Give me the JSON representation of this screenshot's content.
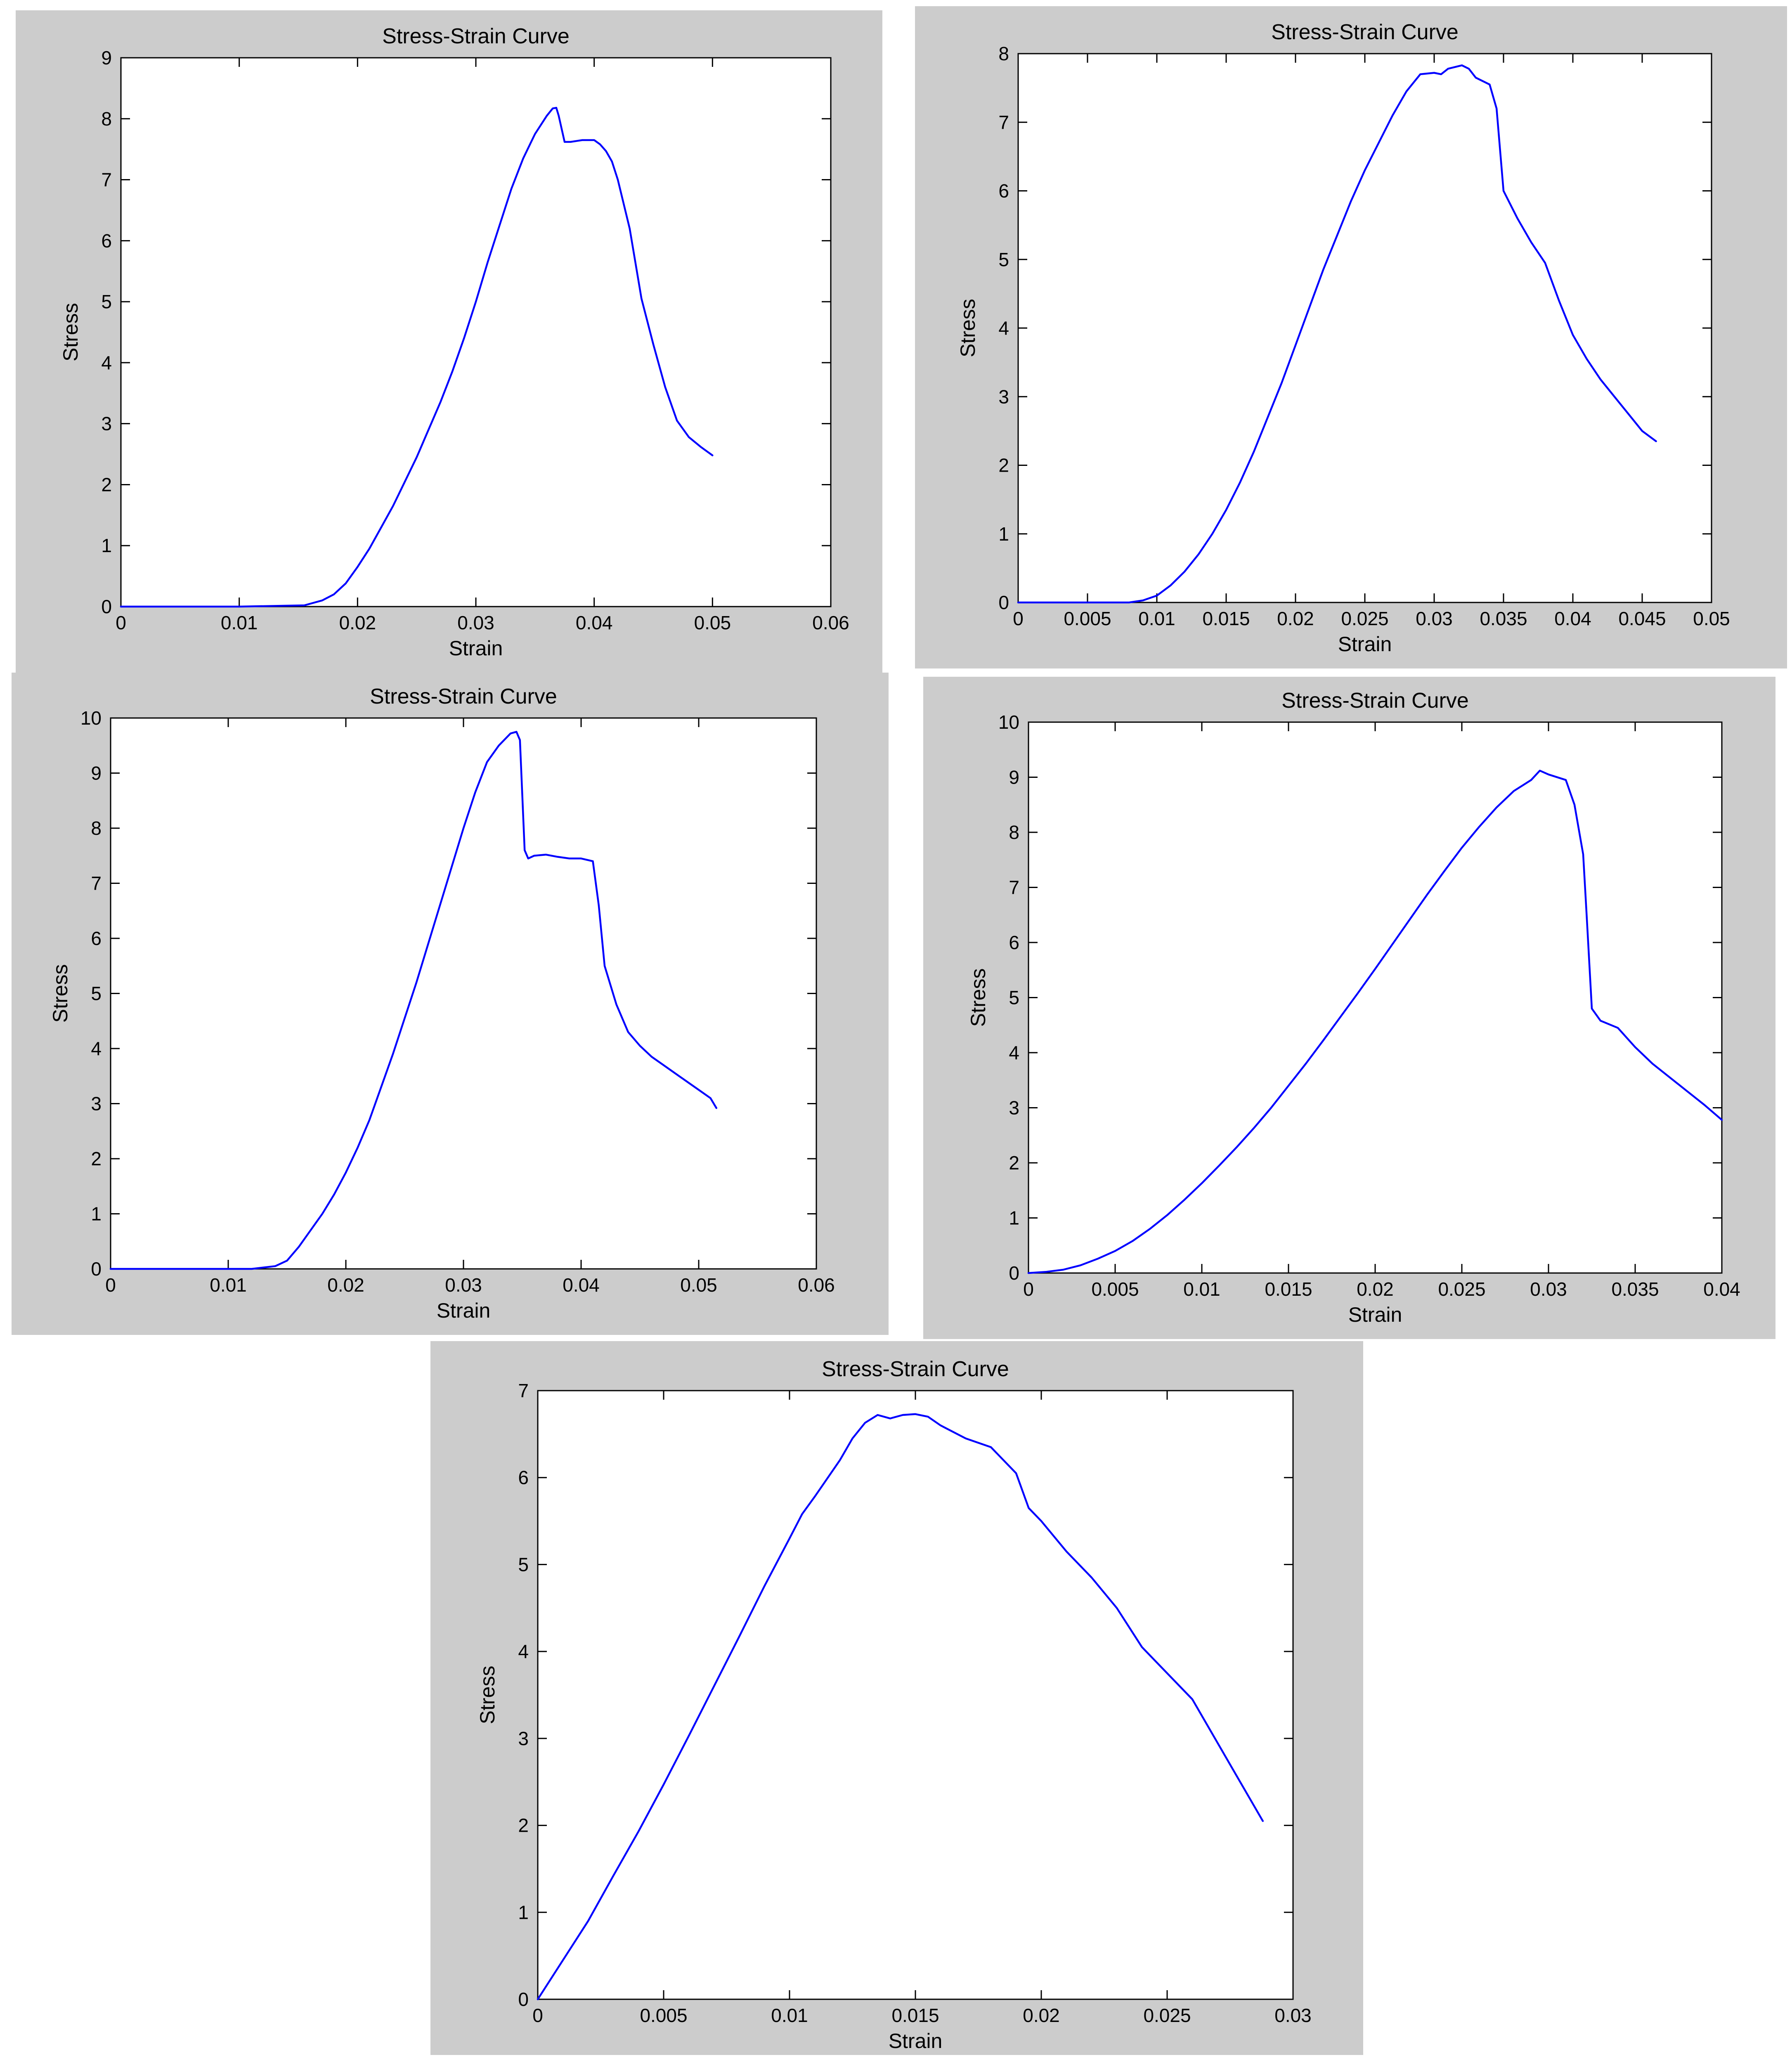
{
  "chart_data": [
    {
      "type": "line",
      "title": "Stress-Strain Curve",
      "xlabel": "Strain",
      "ylabel": "Stress",
      "xlim": [
        0,
        0.06
      ],
      "ylim": [
        0,
        9
      ],
      "xticks": [
        0,
        0.01,
        0.02,
        0.03,
        0.04,
        0.05,
        0.06
      ],
      "xtick_labels": [
        "0",
        "0.01",
        "0.02",
        "0.03",
        "0.04",
        "0.05",
        "0.06"
      ],
      "yticks": [
        0,
        1,
        2,
        3,
        4,
        5,
        6,
        7,
        8,
        9
      ],
      "ytick_labels": [
        "0",
        "1",
        "2",
        "3",
        "4",
        "5",
        "6",
        "7",
        "8",
        "9"
      ],
      "grid": false,
      "series": [
        {
          "color": "#0000ff",
          "x": [
            0,
            0.005,
            0.01,
            0.0155,
            0.017,
            0.018,
            0.019,
            0.02,
            0.021,
            0.022,
            0.023,
            0.024,
            0.025,
            0.026,
            0.027,
            0.028,
            0.029,
            0.03,
            0.031,
            0.032,
            0.033,
            0.034,
            0.035,
            0.036,
            0.0365,
            0.0368,
            0.037,
            0.0375,
            0.038,
            0.039,
            0.04,
            0.0405,
            0.041,
            0.0415,
            0.042,
            0.043,
            0.044,
            0.045,
            0.046,
            0.047,
            0.048,
            0.049,
            0.0495,
            0.05
          ],
          "y": [
            0,
            0,
            0,
            0.02,
            0.1,
            0.2,
            0.38,
            0.65,
            0.95,
            1.3,
            1.65,
            2.05,
            2.45,
            2.9,
            3.35,
            3.85,
            4.4,
            5.0,
            5.65,
            6.25,
            6.85,
            7.35,
            7.75,
            8.05,
            8.17,
            8.18,
            8.05,
            7.62,
            7.62,
            7.65,
            7.65,
            7.58,
            7.47,
            7.3,
            7.0,
            6.2,
            5.05,
            4.3,
            3.6,
            3.05,
            2.78,
            2.62,
            2.55,
            2.48
          ]
        }
      ]
    },
    {
      "type": "line",
      "title": "Stress-Strain Curve",
      "xlabel": "Strain",
      "ylabel": "Stress",
      "xlim": [
        0,
        0.05
      ],
      "ylim": [
        0,
        8
      ],
      "xticks": [
        0,
        0.005,
        0.01,
        0.015,
        0.02,
        0.025,
        0.03,
        0.035,
        0.04,
        0.045,
        0.05
      ],
      "xtick_labels": [
        "0",
        "0.005",
        "0.01",
        "0.015",
        "0.02",
        "0.025",
        "0.03",
        "0.035",
        "0.04",
        "0.045",
        "0.05"
      ],
      "yticks": [
        0,
        1,
        2,
        3,
        4,
        5,
        6,
        7,
        8
      ],
      "ytick_labels": [
        "0",
        "1",
        "2",
        "3",
        "4",
        "5",
        "6",
        "7",
        "8"
      ],
      "grid": false,
      "series": [
        {
          "color": "#0000ff",
          "x": [
            0,
            0.004,
            0.008,
            0.009,
            0.01,
            0.011,
            0.012,
            0.013,
            0.014,
            0.015,
            0.016,
            0.017,
            0.018,
            0.019,
            0.02,
            0.021,
            0.022,
            0.023,
            0.024,
            0.025,
            0.026,
            0.027,
            0.028,
            0.029,
            0.03,
            0.0305,
            0.031,
            0.032,
            0.0325,
            0.033,
            0.034,
            0.0345,
            0.035,
            0.036,
            0.037,
            0.038,
            0.039,
            0.04,
            0.041,
            0.042,
            0.043,
            0.044,
            0.045,
            0.046
          ],
          "y": [
            0,
            0,
            0,
            0.03,
            0.1,
            0.25,
            0.45,
            0.7,
            1.0,
            1.35,
            1.75,
            2.2,
            2.7,
            3.2,
            3.75,
            4.3,
            4.85,
            5.35,
            5.85,
            6.3,
            6.7,
            7.1,
            7.45,
            7.7,
            7.72,
            7.7,
            7.78,
            7.83,
            7.78,
            7.65,
            7.55,
            7.2,
            6.0,
            5.6,
            5.25,
            4.95,
            4.4,
            3.9,
            3.55,
            3.25,
            3.0,
            2.75,
            2.5,
            2.35
          ]
        }
      ]
    },
    {
      "type": "line",
      "title": "Stress-Strain Curve",
      "xlabel": "Strain",
      "ylabel": "Stress",
      "xlim": [
        0,
        0.06
      ],
      "ylim": [
        0,
        10
      ],
      "xticks": [
        0,
        0.01,
        0.02,
        0.03,
        0.04,
        0.05,
        0.06
      ],
      "xtick_labels": [
        "0",
        "0.01",
        "0.02",
        "0.03",
        "0.04",
        "0.05",
        "0.06"
      ],
      "yticks": [
        0,
        1,
        2,
        3,
        4,
        5,
        6,
        7,
        8,
        9,
        10
      ],
      "ytick_labels": [
        "0",
        "1",
        "2",
        "3",
        "4",
        "5",
        "6",
        "7",
        "8",
        "9",
        "10"
      ],
      "grid": false,
      "series": [
        {
          "color": "#0000ff",
          "x": [
            0,
            0.006,
            0.012,
            0.014,
            0.015,
            0.016,
            0.017,
            0.018,
            0.019,
            0.02,
            0.021,
            0.022,
            0.023,
            0.024,
            0.025,
            0.026,
            0.027,
            0.028,
            0.029,
            0.03,
            0.031,
            0.032,
            0.033,
            0.034,
            0.0345,
            0.0348,
            0.035,
            0.0352,
            0.0355,
            0.036,
            0.037,
            0.038,
            0.039,
            0.04,
            0.041,
            0.0415,
            0.042,
            0.043,
            0.044,
            0.045,
            0.046,
            0.047,
            0.048,
            0.049,
            0.05,
            0.051,
            0.0515
          ],
          "y": [
            0,
            0,
            0,
            0.05,
            0.15,
            0.4,
            0.7,
            1.0,
            1.35,
            1.75,
            2.2,
            2.7,
            3.3,
            3.9,
            4.55,
            5.2,
            5.9,
            6.6,
            7.3,
            8.0,
            8.65,
            9.2,
            9.5,
            9.72,
            9.75,
            9.6,
            8.6,
            7.6,
            7.45,
            7.5,
            7.52,
            7.48,
            7.45,
            7.45,
            7.4,
            6.6,
            5.5,
            4.8,
            4.3,
            4.05,
            3.85,
            3.7,
            3.55,
            3.4,
            3.25,
            3.1,
            2.92
          ]
        }
      ]
    },
    {
      "type": "line",
      "title": "Stress-Strain Curve",
      "xlabel": "Strain",
      "ylabel": "Stress",
      "xlim": [
        0,
        0.04
      ],
      "ylim": [
        0,
        10
      ],
      "xticks": [
        0,
        0.005,
        0.01,
        0.015,
        0.02,
        0.025,
        0.03,
        0.035,
        0.04
      ],
      "xtick_labels": [
        "0",
        "0.005",
        "0.01",
        "0.015",
        "0.02",
        "0.025",
        "0.03",
        "0.035",
        "0.04"
      ],
      "yticks": [
        0,
        1,
        2,
        3,
        4,
        5,
        6,
        7,
        8,
        9,
        10
      ],
      "ytick_labels": [
        "0",
        "1",
        "2",
        "3",
        "4",
        "5",
        "6",
        "7",
        "8",
        "9",
        "10"
      ],
      "grid": false,
      "series": [
        {
          "color": "#0000ff",
          "x": [
            0,
            0.001,
            0.002,
            0.003,
            0.004,
            0.005,
            0.006,
            0.007,
            0.008,
            0.009,
            0.01,
            0.011,
            0.012,
            0.013,
            0.014,
            0.015,
            0.016,
            0.017,
            0.018,
            0.019,
            0.02,
            0.021,
            0.022,
            0.023,
            0.024,
            0.025,
            0.026,
            0.027,
            0.028,
            0.029,
            0.0295,
            0.03,
            0.031,
            0.0315,
            0.032,
            0.0322,
            0.0325,
            0.033,
            0.034,
            0.035,
            0.036,
            0.037,
            0.038,
            0.039,
            0.04
          ],
          "y": [
            0,
            0.02,
            0.06,
            0.14,
            0.26,
            0.4,
            0.58,
            0.8,
            1.05,
            1.33,
            1.63,
            1.95,
            2.28,
            2.63,
            3.0,
            3.4,
            3.8,
            4.22,
            4.65,
            5.08,
            5.52,
            5.97,
            6.42,
            6.87,
            7.3,
            7.72,
            8.1,
            8.45,
            8.75,
            8.95,
            9.12,
            9.05,
            8.95,
            8.5,
            7.6,
            6.5,
            4.8,
            4.58,
            4.45,
            4.1,
            3.8,
            3.55,
            3.3,
            3.05,
            2.78
          ]
        }
      ]
    },
    {
      "type": "line",
      "title": "Stress-Strain Curve",
      "xlabel": "Strain",
      "ylabel": "Stress",
      "xlim": [
        0,
        0.03
      ],
      "ylim": [
        0,
        7
      ],
      "xticks": [
        0,
        0.005,
        0.01,
        0.015,
        0.02,
        0.025,
        0.03
      ],
      "xtick_labels": [
        "0",
        "0.005",
        "0.01",
        "0.015",
        "0.02",
        "0.025",
        "0.03"
      ],
      "yticks": [
        0,
        1,
        2,
        3,
        4,
        5,
        6,
        7
      ],
      "ytick_labels": [
        "0",
        "1",
        "2",
        "3",
        "4",
        "5",
        "6",
        "7"
      ],
      "grid": false,
      "series": [
        {
          "color": "#0000ff",
          "x": [
            0,
            0.001,
            0.002,
            0.003,
            0.004,
            0.005,
            0.006,
            0.007,
            0.008,
            0.009,
            0.01,
            0.0105,
            0.011,
            0.012,
            0.0125,
            0.013,
            0.0135,
            0.014,
            0.0145,
            0.015,
            0.0155,
            0.016,
            0.017,
            0.018,
            0.019,
            0.0195,
            0.02,
            0.021,
            0.022,
            0.023,
            0.024,
            0.025,
            0.026,
            0.027,
            0.0275,
            0.028,
            0.0285,
            0.0288
          ],
          "y": [
            0,
            0.45,
            0.9,
            1.42,
            1.93,
            2.47,
            3.03,
            3.6,
            4.17,
            4.75,
            5.3,
            5.58,
            5.78,
            6.2,
            6.45,
            6.63,
            6.72,
            6.68,
            6.72,
            6.73,
            6.7,
            6.6,
            6.45,
            6.35,
            6.05,
            5.65,
            5.5,
            5.15,
            4.85,
            4.5,
            4.05,
            3.75,
            3.45,
            2.95,
            2.7,
            2.45,
            2.2,
            2.05
          ]
        }
      ]
    }
  ]
}
